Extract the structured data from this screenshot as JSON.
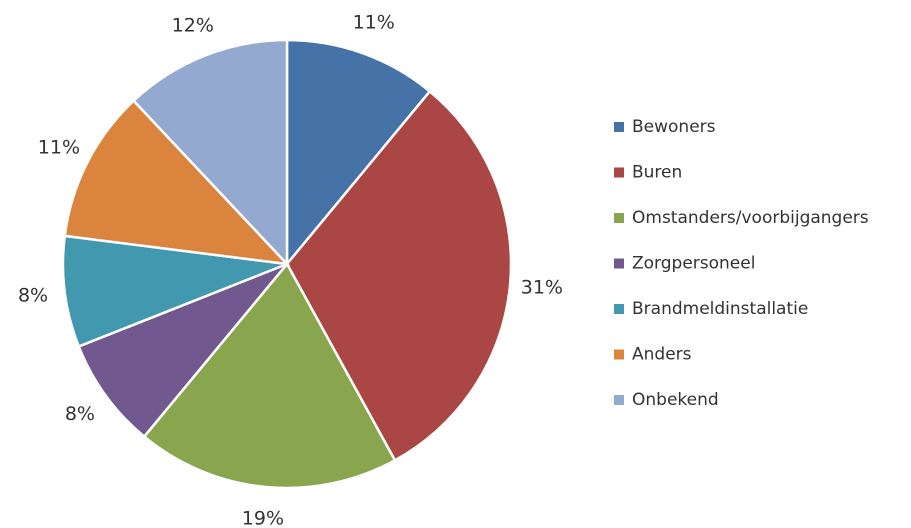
{
  "chart_data": {
    "type": "pie",
    "categories": [
      "Bewoners",
      "Buren",
      "Omstanders/voorbijgangers",
      "Zorgpersoneel",
      "Brandmeldinstallatie",
      "Anders",
      "Onbekend"
    ],
    "values": [
      11,
      31,
      19,
      8,
      8,
      11,
      12
    ],
    "value_labels": [
      "11%",
      "31%",
      "19%",
      "8%",
      "8%",
      "11%",
      "12%"
    ],
    "colors": [
      "#4572a7",
      "#aa4643",
      "#89a54e",
      "#71588f",
      "#4198af",
      "#db843d",
      "#93a9cf"
    ],
    "legend": "right"
  }
}
